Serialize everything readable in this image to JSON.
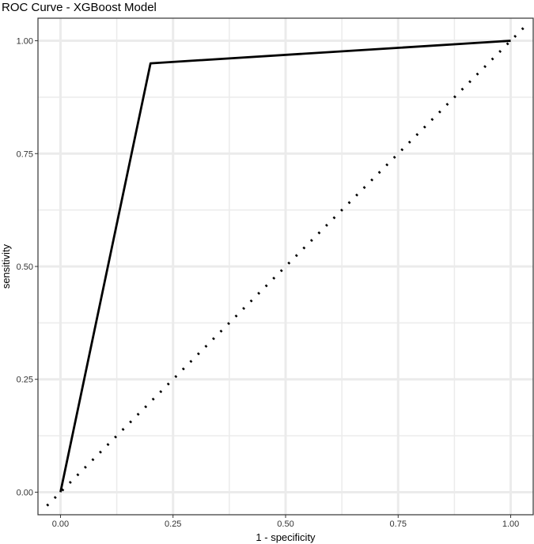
{
  "chart_data": {
    "type": "line",
    "title": "ROC Curve - XGBoost Model",
    "xlabel": "1 - specificity",
    "ylabel": "sensitivity",
    "xlim": [
      -0.05,
      1.05
    ],
    "ylim": [
      -0.05,
      1.05
    ],
    "x_ticks": [
      0,
      0.25,
      0.5,
      0.75,
      1
    ],
    "x_tick_labels": [
      "0.00",
      "0.25",
      "0.50",
      "0.75",
      "1.00"
    ],
    "y_ticks": [
      0,
      0.25,
      0.5,
      0.75,
      1
    ],
    "y_tick_labels": [
      "0.00",
      "0.25",
      "0.50",
      "0.75",
      "1.00"
    ],
    "grid": true,
    "legend": "none",
    "series": [
      {
        "style": "solid",
        "color": "#000000",
        "x": [
          0,
          0.2,
          1
        ],
        "y": [
          0,
          0.95,
          1
        ]
      },
      {
        "style": "dotted",
        "color": "#000000",
        "x": [
          -0.03,
          1.03
        ],
        "y": [
          -0.03,
          1.03
        ]
      }
    ],
    "panel_background": "#ffffff",
    "grid_color": "#ebebeb",
    "panel_border_color": "#333333"
  }
}
